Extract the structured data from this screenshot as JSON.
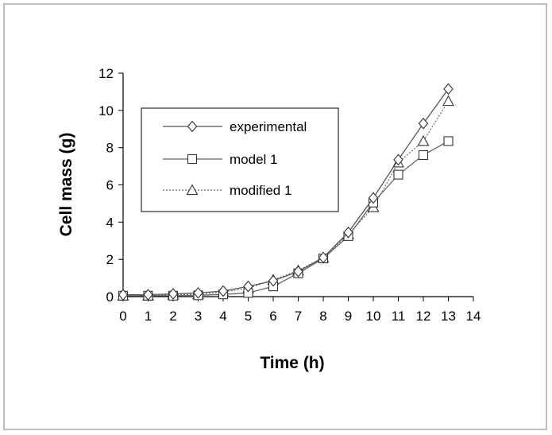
{
  "chart_data": {
    "type": "line",
    "xlabel": "Time (h)",
    "ylabel": "Cell mass (g)",
    "xlim": [
      0,
      14
    ],
    "ylim": [
      0,
      12
    ],
    "x_ticks": [
      "0",
      "1",
      "2",
      "3",
      "4",
      "5",
      "6",
      "7",
      "8",
      "9",
      "10",
      "11",
      "12",
      "13",
      "14"
    ],
    "y_ticks": [
      "0",
      "2",
      "4",
      "6",
      "8",
      "10",
      "12"
    ],
    "grid": false,
    "legend_position": "upper-left",
    "x": [
      0,
      1,
      2,
      3,
      4,
      5,
      6,
      7,
      8,
      9,
      10,
      11,
      12,
      13
    ],
    "series": [
      {
        "name": "experimental",
        "marker": "diamond",
        "line": "solid",
        "color": "#555555",
        "values": [
          0.1,
          0.1,
          0.15,
          0.2,
          0.3,
          0.55,
          0.85,
          1.35,
          2.1,
          3.45,
          5.3,
          7.35,
          9.3,
          11.15
        ]
      },
      {
        "name": "model 1",
        "marker": "square",
        "line": "solid",
        "color": "#666666",
        "values": [
          0.05,
          0.05,
          0.05,
          0.07,
          0.12,
          0.2,
          0.55,
          1.25,
          2.05,
          3.25,
          5.05,
          6.55,
          7.6,
          8.35
        ]
      },
      {
        "name": "modified 1",
        "marker": "triangle",
        "line": "dotted",
        "color": "#666666",
        "values": [
          0.05,
          0.05,
          0.1,
          0.12,
          0.25,
          0.45,
          0.9,
          1.4,
          2.1,
          3.35,
          4.8,
          7.2,
          8.35,
          10.5
        ]
      }
    ]
  }
}
